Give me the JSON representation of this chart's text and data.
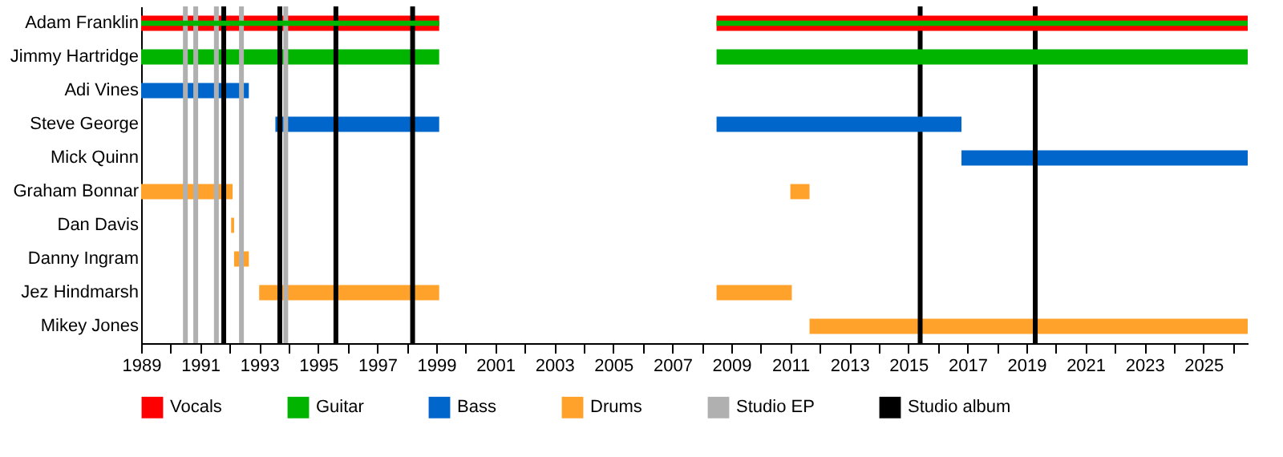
{
  "chart_data": {
    "type": "bar",
    "orientation": "horizontal",
    "categories": [
      "Adam Franklin",
      "Jimmy Hartridge",
      "Adi Vines",
      "Steve George",
      "Mick Quinn",
      "Graham Bonnar",
      "Dan Davis",
      "Danny Ingram",
      "Jez Hindmarsh",
      "Mikey Jones"
    ],
    "series": [
      {
        "name": "Vocals",
        "color": "#ff0000",
        "base": [
          1989,
          null,
          null,
          null,
          null,
          null,
          null,
          null,
          null,
          null
        ],
        "values": [
          10.1,
          null,
          null,
          null,
          null,
          null,
          null,
          null,
          null,
          null
        ]
      },
      {
        "color": "#ff0000",
        "base": [
          2008.5,
          null,
          null,
          null,
          null,
          null,
          null,
          null,
          null,
          null
        ],
        "values": [
          18.0,
          null,
          null,
          null,
          null,
          null,
          null,
          null,
          null,
          null
        ]
      },
      {
        "name": "Guitar",
        "color": "#00b400",
        "base": [
          1989,
          1989,
          null,
          null,
          null,
          null,
          null,
          null,
          null,
          null
        ],
        "values": [
          10.1,
          10.1,
          null,
          null,
          null,
          null,
          null,
          null,
          null,
          null
        ]
      },
      {
        "color": "#00b400",
        "base": [
          2008.5,
          2008.5,
          null,
          null,
          null,
          null,
          null,
          null,
          null,
          null
        ],
        "values": [
          18.0,
          18.0,
          null,
          null,
          null,
          null,
          null,
          null,
          null,
          null
        ]
      },
      {
        "name": "Bass",
        "color": "#0066cc",
        "base": [
          null,
          null,
          1989,
          1993.55,
          2016.8,
          null,
          null,
          null,
          null,
          null
        ],
        "values": [
          null,
          null,
          3.65,
          5.55,
          9.7,
          null,
          null,
          null,
          null,
          null
        ]
      },
      {
        "color": "#0066cc",
        "base": [
          null,
          null,
          null,
          2008.5,
          null,
          null,
          null,
          null,
          null,
          null
        ],
        "values": [
          null,
          null,
          null,
          8.3,
          null,
          null,
          null,
          null,
          null,
          null
        ]
      },
      {
        "name": "Drums",
        "color": "#ffa22b",
        "base": [
          null,
          null,
          null,
          null,
          null,
          1989,
          1992.05,
          1992.15,
          1993.0,
          2011.65
        ],
        "values": [
          null,
          null,
          null,
          null,
          null,
          3.1,
          0.1,
          0.5,
          6.1,
          14.85
        ]
      },
      {
        "color": "#ffa22b",
        "base": [
          null,
          null,
          null,
          null,
          null,
          2011.0,
          null,
          null,
          2008.5,
          null
        ],
        "values": [
          null,
          null,
          null,
          null,
          null,
          0.65,
          null,
          null,
          2.55,
          null
        ]
      }
    ],
    "ref_lines": [
      {
        "axis": "x",
        "value": 1990.5,
        "label": "Studio EP",
        "color": "#b0b0b0"
      },
      {
        "axis": "x",
        "value": 1990.85,
        "color": "#b0b0b0"
      },
      {
        "axis": "x",
        "value": 1991.55,
        "color": "#b0b0b0"
      },
      {
        "axis": "x",
        "value": 1992.4,
        "color": "#b0b0b0"
      },
      {
        "axis": "x",
        "value": 1993.9,
        "color": "#b0b0b0"
      },
      {
        "axis": "x",
        "value": 1991.8,
        "label": "Studio album",
        "color": "#000000"
      },
      {
        "axis": "x",
        "value": 1993.7,
        "color": "#000000"
      },
      {
        "axis": "x",
        "value": 1995.6,
        "color": "#000000"
      },
      {
        "axis": "x",
        "value": 1998.2,
        "color": "#000000"
      },
      {
        "axis": "x",
        "value": 2015.4,
        "color": "#000000"
      },
      {
        "axis": "x",
        "value": 2019.3,
        "color": "#000000"
      }
    ],
    "xlim": [
      1989,
      2026.5
    ],
    "xticks": [
      1989,
      {
        "value": 1990,
        "label": null
      },
      1991,
      {
        "value": 1992,
        "label": null
      },
      1993,
      {
        "value": 1994,
        "label": null
      },
      1995,
      {
        "value": 1996,
        "label": null
      },
      1997,
      {
        "value": 1998,
        "label": null
      },
      1999,
      {
        "value": 2000,
        "label": null
      },
      2001,
      {
        "value": 2002,
        "label": null
      },
      2003,
      {
        "value": 2004,
        "label": null
      },
      2005,
      {
        "value": 2006,
        "label": null
      },
      2007,
      {
        "value": 2008,
        "label": null
      },
      2009,
      {
        "value": 2010,
        "label": null
      },
      2011,
      {
        "value": 2012,
        "label": null
      },
      2013,
      {
        "value": 2014,
        "label": null
      },
      2015,
      {
        "value": 2016,
        "label": null
      },
      2017,
      {
        "value": 2018,
        "label": null
      },
      2019,
      {
        "value": 2020,
        "label": null
      },
      2021,
      {
        "value": 2022,
        "label": null
      },
      2023,
      {
        "value": 2024,
        "label": null
      },
      2025,
      {
        "value": 2026,
        "label": null
      }
    ],
    "grid": false,
    "legend": "bottom"
  }
}
